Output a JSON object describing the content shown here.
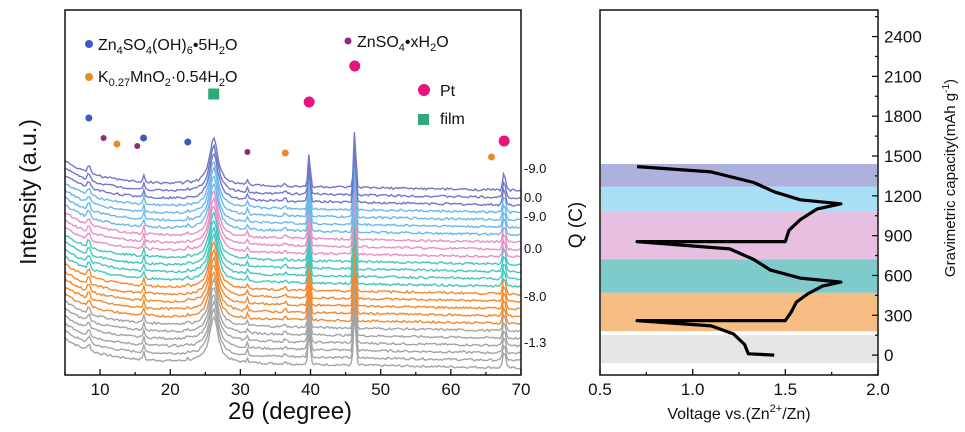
{
  "chart_data": [
    {
      "type": "line",
      "xlabel": "2θ (degree)",
      "ylabel": "Intensity (a.u.)",
      "xlim": [
        5,
        70
      ],
      "x_ticks": [
        "10",
        "20",
        "30",
        "40",
        "50",
        "60",
        "70"
      ],
      "right_labels": [
        "-9.0",
        "0.0",
        "-9.0",
        "0.0",
        "-8.0",
        "-1.3"
      ],
      "legend": [
        {
          "label": "Zn4SO4(OH)6•5H2O",
          "color": "#3a5cc2",
          "marker": "circle"
        },
        {
          "label": "ZnSO4•xH2O",
          "color": "#8c2c80",
          "marker": "circle"
        },
        {
          "label": "K0.27MnO2·0.54H2O",
          "color": "#e8892e",
          "marker": "circle"
        },
        {
          "label": "Pt",
          "color": "#e8137c",
          "marker": "circle"
        },
        {
          "label": "film",
          "color": "#2faa78",
          "marker": "square"
        }
      ],
      "peaks": {
        "film": [
          26.2
        ],
        "Pt": [
          39.8,
          46.3,
          67.6
        ],
        "Zn4SO4(OH)6•5H2O": [
          8.4,
          16.2,
          22.5
        ],
        "ZnSO4•xH2O": [
          10.5,
          15.3,
          31.0
        ],
        "K0.27MnO2·0.54H2O": [
          12.4,
          36.4,
          65.8
        ]
      },
      "series_groups": [
        {
          "name": "gray",
          "color": "#a5a5a5",
          "count": 6
        },
        {
          "name": "orange",
          "color": "#f28a2f",
          "count": 5
        },
        {
          "name": "teal",
          "color": "#45c6c0",
          "count": 4
        },
        {
          "name": "pink",
          "color": "#e690c8",
          "count": 3
        },
        {
          "name": "light-blue",
          "color": "#6bb8ec",
          "count": 4
        },
        {
          "name": "purple",
          "color": "#7278c7",
          "count": 3
        }
      ]
    },
    {
      "type": "line",
      "xlabel": "Voltage vs.(Zn2+/Zn)",
      "ylabel_left": "Q (C)",
      "ylabel_right": "Gravimetric capacity(mAh g-1)",
      "xlim": [
        0.5,
        2.0
      ],
      "ylim": [
        -150,
        2600
      ],
      "x_ticks": [
        "0.5",
        "1.0",
        "1.5",
        "2.0"
      ],
      "y_ticks_right": [
        "0",
        "300",
        "600",
        "900",
        "1200",
        "1500",
        "1800",
        "2100",
        "2400"
      ],
      "bands": [
        {
          "from": -60,
          "to": 150,
          "color": "#e6e6e6"
        },
        {
          "from": 180,
          "to": 470,
          "color": "#f6bd85"
        },
        {
          "from": 470,
          "to": 720,
          "color": "#7fcbcb"
        },
        {
          "from": 720,
          "to": 1080,
          "color": "#e7bfe1"
        },
        {
          "from": 1080,
          "to": 1270,
          "color": "#a9dff5"
        },
        {
          "from": 1270,
          "to": 1440,
          "color": "#aeb1de"
        }
      ],
      "curve": [
        {
          "x": 1.44,
          "y": 0
        },
        {
          "x": 1.3,
          "y": 10
        },
        {
          "x": 1.28,
          "y": 80
        },
        {
          "x": 1.22,
          "y": 160
        },
        {
          "x": 1.1,
          "y": 220
        },
        {
          "x": 0.7,
          "y": 260
        },
        {
          "x": 1.5,
          "y": 260
        },
        {
          "x": 1.53,
          "y": 320
        },
        {
          "x": 1.56,
          "y": 400
        },
        {
          "x": 1.62,
          "y": 460
        },
        {
          "x": 1.7,
          "y": 520
        },
        {
          "x": 1.8,
          "y": 550
        },
        {
          "x": 1.58,
          "y": 580
        },
        {
          "x": 1.42,
          "y": 640
        },
        {
          "x": 1.33,
          "y": 720
        },
        {
          "x": 1.2,
          "y": 800
        },
        {
          "x": 0.7,
          "y": 855
        },
        {
          "x": 1.5,
          "y": 855
        },
        {
          "x": 1.52,
          "y": 940
        },
        {
          "x": 1.58,
          "y": 1020
        },
        {
          "x": 1.67,
          "y": 1100
        },
        {
          "x": 1.8,
          "y": 1140
        },
        {
          "x": 1.58,
          "y": 1170
        },
        {
          "x": 1.44,
          "y": 1230
        },
        {
          "x": 1.33,
          "y": 1300
        },
        {
          "x": 1.1,
          "y": 1380
        },
        {
          "x": 0.7,
          "y": 1420
        }
      ]
    }
  ]
}
